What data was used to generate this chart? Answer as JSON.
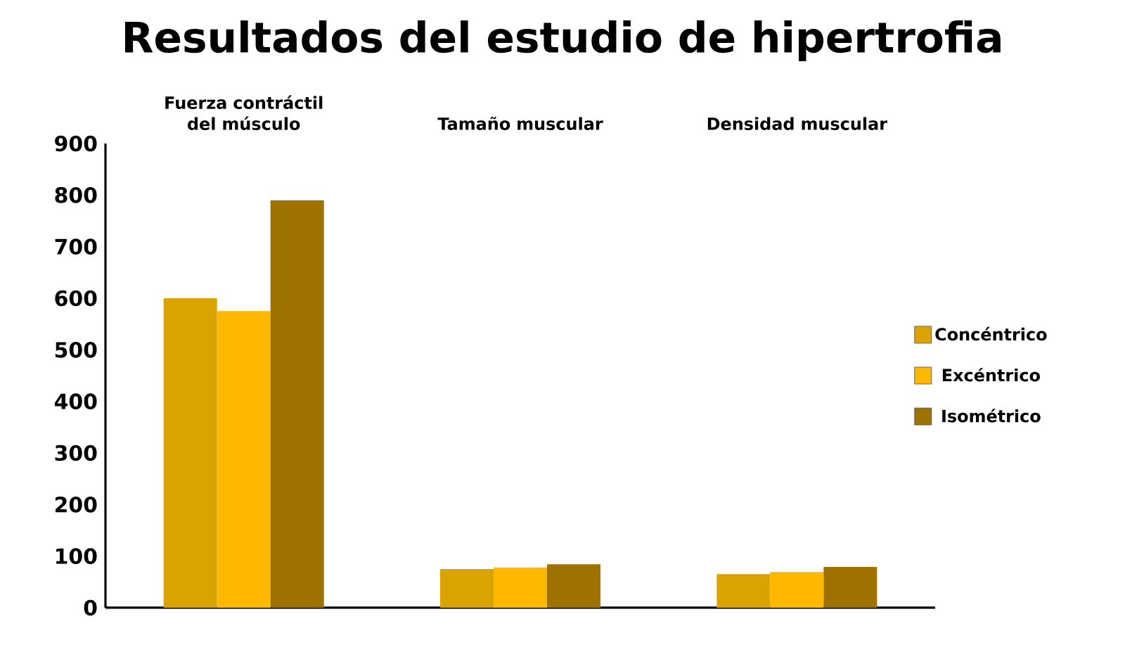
{
  "chart_data": {
    "type": "bar",
    "title": "Resultados del estudio de hipertrofia",
    "categories": [
      "Fuerza contráctil del músculo",
      "Tamaño muscular",
      "Densidad muscular"
    ],
    "series": [
      {
        "name": "Concéntrico",
        "color": "#dba300",
        "values": [
          600,
          75,
          65
        ]
      },
      {
        "name": "Excéntrico",
        "color": "#ffb800",
        "values": [
          575,
          78,
          69
        ]
      },
      {
        "name": "Isométrico",
        "color": "#9e7200",
        "values": [
          790,
          84,
          79
        ]
      }
    ],
    "ylim": [
      0,
      900
    ],
    "yticks": [
      0,
      100,
      200,
      300,
      400,
      500,
      600,
      700,
      800,
      900
    ],
    "grid": false,
    "legend": "right"
  }
}
